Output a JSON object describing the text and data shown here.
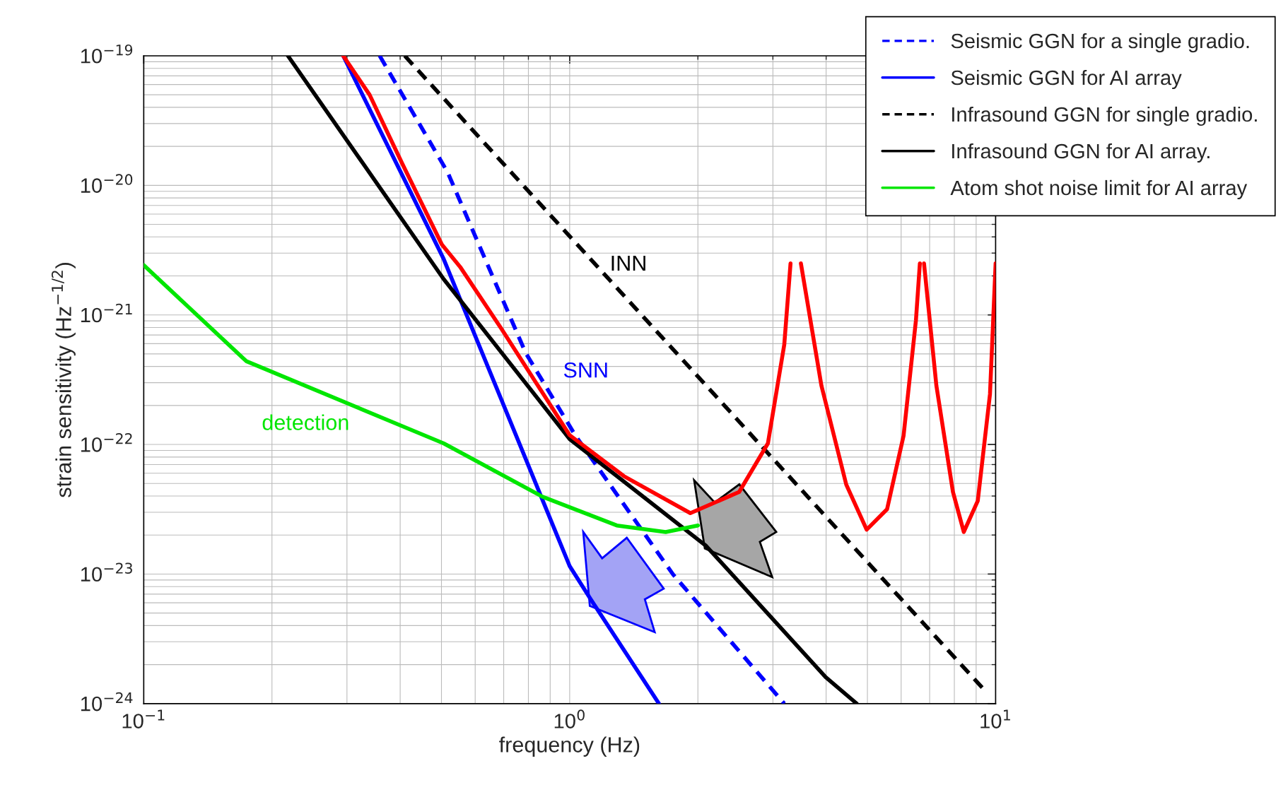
{
  "chart_data": {
    "type": "line",
    "xlabel": "frequency (Hz)",
    "ylabel": "strain sensitivity (Hz$^{−1/2}$)",
    "log": "xy",
    "grid": true,
    "legend": "top right",
    "xlim": [
      0.1,
      10
    ],
    "ylim": [
      1e-24,
      1e-19
    ],
    "xticks": [
      {
        "value": 0.1,
        "label": "10$^{−1}$"
      },
      {
        "value": 1,
        "label": "10$^{0}$"
      },
      {
        "value": 10,
        "label": "10$^{1}$"
      }
    ],
    "yticks": [
      {
        "value": 1e-24,
        "label": "10$^{−24}$"
      },
      {
        "value": 1e-23,
        "label": "10$^{−23}$"
      },
      {
        "value": 1e-22,
        "label": "10$^{−22}$"
      },
      {
        "value": 1e-21,
        "label": "10$^{−21}$"
      },
      {
        "value": 1e-20,
        "label": "10$^{−20}$"
      },
      {
        "value": 1e-19,
        "label": "10$^{−19}$"
      }
    ],
    "series": [
      {
        "name": "Seismic GGN for a single gradio.",
        "color": "#0000ff",
        "line_style": "dashed",
        "x": [
          0.358,
          0.517,
          0.788,
          1.03,
          1.75,
          3.19
        ],
        "values": [
          1e-19,
          1.26e-20,
          5.1e-22,
          1.18e-22,
          9.9e-24,
          1e-24
        ]
      },
      {
        "name": "Seismic GGN for AI array",
        "color": "#0000ff",
        "line_style": "solid",
        "x": [
          0.294,
          0.506,
          1.0,
          1.12,
          1.62
        ],
        "values": [
          1e-19,
          2.7e-21,
          1.15e-23,
          6.4e-24,
          1e-24
        ]
      },
      {
        "name": "Infrasound GGN for single gradio.",
        "color": "#000000",
        "line_style": "dashed",
        "x": [
          0.41,
          9.5
        ],
        "values": [
          1e-19,
          1.23e-24
        ]
      },
      {
        "name": "Infrasound GGN for AI array.",
        "color": "#000000",
        "line_style": "solid",
        "x": [
          0.218,
          0.506,
          1.0,
          2.09,
          3.99,
          4.72
        ],
        "values": [
          1e-19,
          1.89e-21,
          1.1e-22,
          1.65e-23,
          1.6e-24,
          1e-24
        ]
      },
      {
        "name": "Atom shot noise limit for AI array",
        "color": "#00e600",
        "line_style": "solid",
        "x": [
          0.1,
          0.174,
          0.506,
          0.862,
          1.29,
          1.68,
          2.0
        ],
        "values": [
          2.42e-21,
          4.4e-22,
          1.02e-22,
          3.96e-23,
          2.37e-23,
          2.11e-23,
          2.37e-23
        ]
      },
      {
        "color": "#ff0000",
        "line_style": "solid",
        "x": [
          0.294,
          0.339,
          0.405,
          0.501,
          0.553,
          0.69,
          1.0,
          1.34,
          1.92,
          2.5,
          2.92,
          3.19,
          3.3,
          3.4,
          3.49,
          3.9,
          4.46,
          4.98,
          5.56,
          6.08,
          6.5,
          6.64,
          6.72,
          6.79,
          7.26,
          7.94,
          8.42,
          9.08,
          9.7,
          10
        ],
        "values": [
          1e-19,
          5e-20,
          1.46e-20,
          3.5e-21,
          2.35e-21,
          7.9e-22,
          1.18e-22,
          5.7e-23,
          2.95e-23,
          4.3e-23,
          1.02e-22,
          5.9e-22,
          2.5e-21,
          null,
          2.5e-21,
          2.84e-22,
          4.9e-23,
          2.2e-23,
          3.16e-23,
          1.17e-22,
          9.1e-22,
          2.5e-21,
          null,
          2.5e-21,
          2.84e-22,
          4.3e-23,
          2.11e-23,
          3.67e-23,
          2.45e-22,
          2.5e-21
        ]
      }
    ],
    "annotations": [
      "INN",
      "SNN",
      "detection"
    ]
  }
}
